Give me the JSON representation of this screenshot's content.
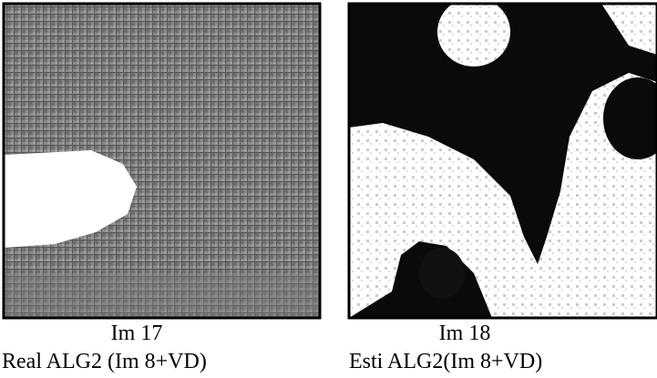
{
  "panels": [
    {
      "label": "Im 17",
      "caption": "Real ALG2 (Im 8+VD)"
    },
    {
      "label": "Im 18",
      "caption": "Esti ALG2(Im 8+VD)"
    }
  ]
}
